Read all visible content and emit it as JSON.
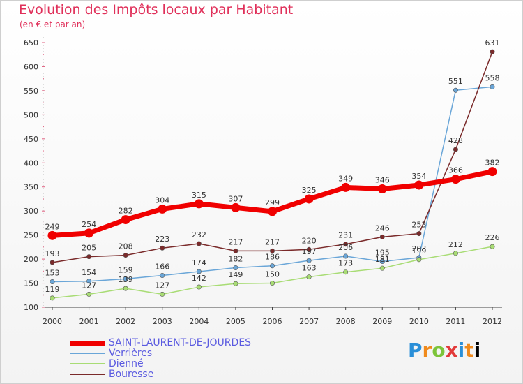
{
  "header": {
    "title": "Evolution des Impôts locaux par Habitant",
    "subtitle": "(en € et par an)"
  },
  "logo_text": "Proxiti",
  "chart_data": {
    "type": "line",
    "x": [
      "2000",
      "2001",
      "2002",
      "2003",
      "2004",
      "2005",
      "2006",
      "2007",
      "2008",
      "2009",
      "2010",
      "2011",
      "2012"
    ],
    "ylim": [
      100,
      650
    ],
    "yticks": [
      100,
      150,
      200,
      250,
      300,
      350,
      400,
      450,
      500,
      550,
      600,
      650
    ],
    "grid": false,
    "legend_position": "bottom-left",
    "series": [
      {
        "name": "SAINT-LAURENT-DE-JOURDES",
        "color": "#f00000",
        "values": [
          249,
          254,
          282,
          304,
          315,
          307,
          299,
          325,
          349,
          346,
          354,
          366,
          382
        ],
        "labels": [
          "249",
          "254",
          "282",
          "304",
          "315",
          "307",
          "299",
          "325",
          "349",
          "346",
          "354",
          "366",
          "382"
        ]
      },
      {
        "name": "Verrières",
        "color": "#6aa6d8",
        "values": [
          153,
          154,
          159,
          166,
          174,
          182,
          186,
          197,
          206,
          195,
          203,
          551,
          558
        ],
        "labels": [
          "153",
          "154",
          "159",
          "166",
          "174",
          "182",
          "186",
          "197",
          "206",
          "195",
          "203",
          "551",
          "558"
        ]
      },
      {
        "name": "Dienné",
        "color": "#a8dc74",
        "values": [
          119,
          127,
          139,
          127,
          142,
          149,
          150,
          163,
          173,
          181,
          199,
          212,
          226
        ],
        "labels": [
          "119",
          "127",
          "139",
          "127",
          "142",
          "149",
          "150",
          "163",
          "173",
          "181",
          "199",
          "212",
          "226"
        ]
      },
      {
        "name": "Bouresse",
        "color": "#7a2a2a",
        "values": [
          193,
          205,
          208,
          223,
          232,
          217,
          217,
          220,
          231,
          246,
          253,
          428,
          631
        ],
        "labels": [
          "193",
          "205",
          "208",
          "223",
          "232",
          "217",
          "217",
          "220",
          "231",
          "246",
          "253",
          "428",
          "631"
        ]
      }
    ]
  }
}
